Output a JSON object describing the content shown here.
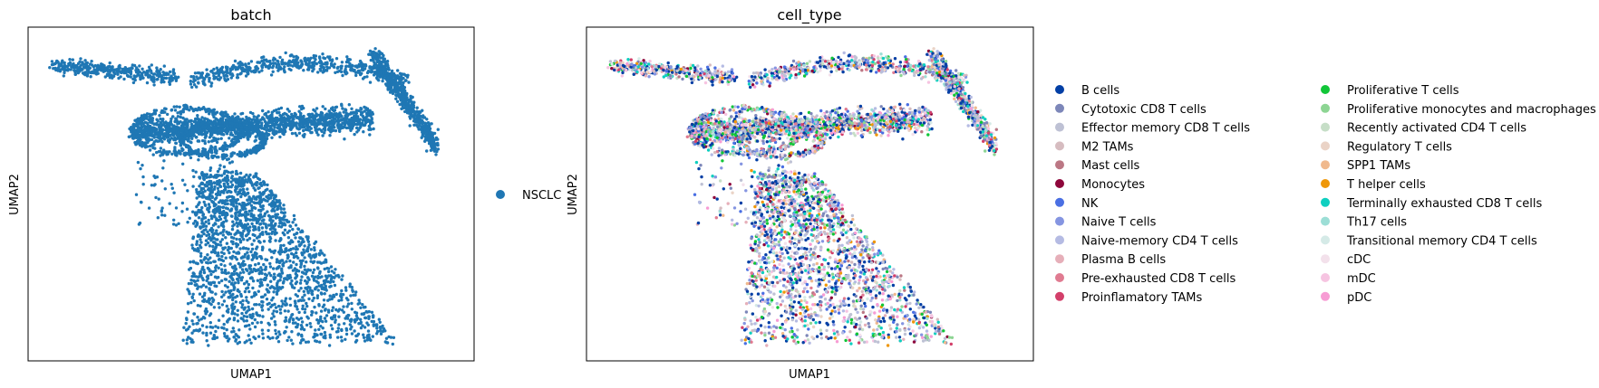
{
  "chart_data": [
    {
      "type": "scatter",
      "title": "batch",
      "xlabel": "UMAP1",
      "ylabel": "UMAP2",
      "grid": false,
      "ticks": "none",
      "legend_position": "right",
      "series": [
        {
          "name": "NSCLC",
          "color": "#1f77b4"
        }
      ]
    },
    {
      "type": "scatter",
      "title": "cell_type",
      "xlabel": "UMAP1",
      "ylabel": "UMAP2",
      "grid": false,
      "ticks": "none",
      "legend_position": "right",
      "series": [
        {
          "name": "B cells",
          "color": "#023fa5"
        },
        {
          "name": "Cytotoxic CD8 T cells",
          "color": "#7d87b9"
        },
        {
          "name": "Effector memory CD8 T cells",
          "color": "#bec1d4"
        },
        {
          "name": "M2 TAMs",
          "color": "#d6bcc0"
        },
        {
          "name": "Mast cells",
          "color": "#bb7784"
        },
        {
          "name": "Monocytes",
          "color": "#8e063b"
        },
        {
          "name": "NK",
          "color": "#4a6fe3"
        },
        {
          "name": "Naive T cells",
          "color": "#8595e1"
        },
        {
          "name": "Naive-memory CD4 T cells",
          "color": "#b5bbe3"
        },
        {
          "name": "Plasma B cells",
          "color": "#e6afb9"
        },
        {
          "name": "Pre-exhausted CD8 T cells",
          "color": "#e07b91"
        },
        {
          "name": "Proinflamatory TAMs",
          "color": "#d33f6a"
        },
        {
          "name": "Proliferative T cells",
          "color": "#11c638"
        },
        {
          "name": "Proliferative monocytes and macrophages",
          "color": "#8dd593"
        },
        {
          "name": "Recently activated CD4 T cells",
          "color": "#c6dec7"
        },
        {
          "name": "Regulatory T cells",
          "color": "#ead3c6"
        },
        {
          "name": "SPP1 TAMs",
          "color": "#f0b98d"
        },
        {
          "name": "T helper cells",
          "color": "#ef9708"
        },
        {
          "name": "Terminally exhausted CD8 T cells",
          "color": "#0fcfc0"
        },
        {
          "name": "Th17 cells",
          "color": "#9cded6"
        },
        {
          "name": "Transitional memory CD4 T cells",
          "color": "#d5eae7"
        },
        {
          "name": "cDC",
          "color": "#f3e1eb"
        },
        {
          "name": "mDC",
          "color": "#f6c4e1"
        },
        {
          "name": "pDC",
          "color": "#f79cd4"
        }
      ]
    }
  ]
}
